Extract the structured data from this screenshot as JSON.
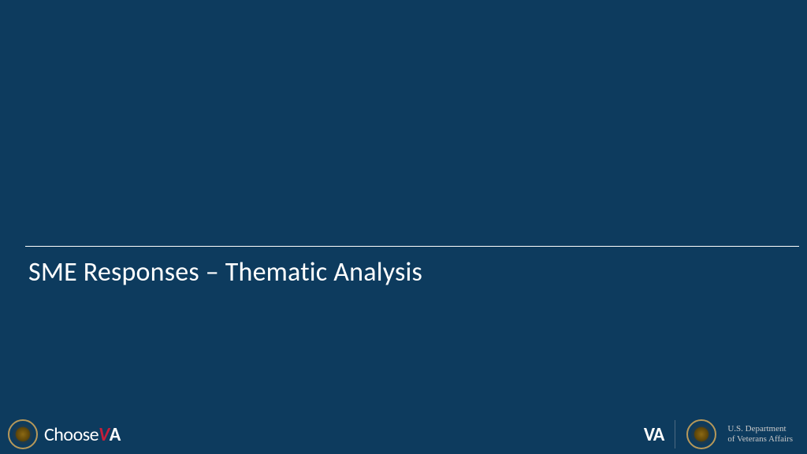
{
  "slide": {
    "title": "SME Responses – Thematic Analysis",
    "background_color": "#0d3b5e",
    "divider_color": "#ffffff",
    "title_color": "#ffffff",
    "title_fontsize": 34
  },
  "footer": {
    "left": {
      "logo_text_choose": "Choose",
      "logo_text_v": "V",
      "logo_text_a": "A",
      "text_color": "#ffffff",
      "accent_color": "#c41e3a",
      "seal_border_color": "#b6985a",
      "seal_bg_color": "#1a3a52"
    },
    "right": {
      "va_text": "VA",
      "dept_line1": "U.S. Department",
      "dept_line2": "of Veterans Affairs",
      "text_color": "#ffffff",
      "dept_text_color": "#c8c8c8",
      "seal_border_color": "#b6985a",
      "seal_bg_color": "#1a3a52",
      "divider_color": "#7a8a9a"
    }
  }
}
